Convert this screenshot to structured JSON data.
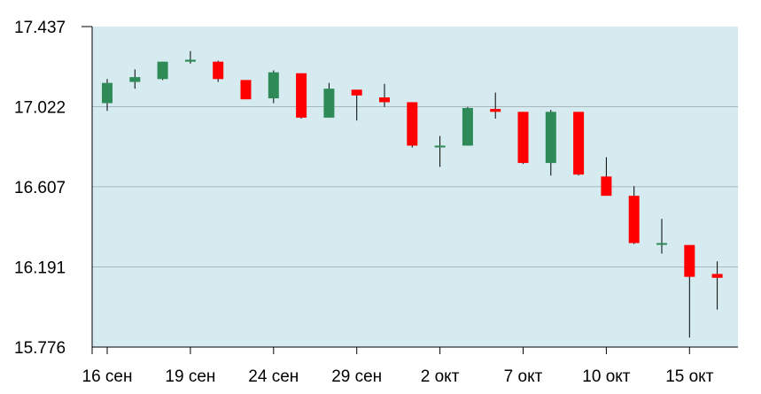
{
  "chart_data": {
    "type": "candlestick",
    "title": "",
    "xlabel": "",
    "ylabel": "",
    "ylim": [
      15.776,
      17.437
    ],
    "y_ticks": [
      "17.437",
      "17.022",
      "16.607",
      "16.191",
      "15.776"
    ],
    "x_ticks": [
      {
        "label": "16 сен",
        "index": 0
      },
      {
        "label": "19 сен",
        "index": 3
      },
      {
        "label": "24 сен",
        "index": 6
      },
      {
        "label": "29 сен",
        "index": 9
      },
      {
        "label": "2 окт",
        "index": 12
      },
      {
        "label": "7 окт",
        "index": 15
      },
      {
        "label": "10 окт",
        "index": 18
      },
      {
        "label": "15 окт",
        "index": 21
      }
    ],
    "grid": true,
    "colors": {
      "background": "#d6ebf0",
      "up": "#2e8b57",
      "down": "#ff0000",
      "wick": "#000000",
      "grid": "#a9b7bd"
    },
    "candles": [
      {
        "open": 17.04,
        "high": 17.165,
        "low": 17.0,
        "close": 17.145
      },
      {
        "open": 17.15,
        "high": 17.215,
        "low": 17.115,
        "close": 17.175
      },
      {
        "open": 17.165,
        "high": 17.255,
        "low": 17.16,
        "close": 17.255
      },
      {
        "open": 17.255,
        "high": 17.31,
        "low": 17.245,
        "close": 17.265
      },
      {
        "open": 17.255,
        "high": 17.26,
        "low": 17.15,
        "close": 17.165
      },
      {
        "open": 17.16,
        "high": 17.16,
        "low": 17.06,
        "close": 17.06
      },
      {
        "open": 17.065,
        "high": 17.21,
        "low": 17.04,
        "close": 17.2
      },
      {
        "open": 17.195,
        "high": 17.195,
        "low": 16.96,
        "close": 16.965
      },
      {
        "open": 16.965,
        "high": 17.145,
        "low": 16.965,
        "close": 17.115
      },
      {
        "open": 17.11,
        "high": 17.11,
        "low": 16.95,
        "close": 17.08
      },
      {
        "open": 17.07,
        "high": 17.14,
        "low": 17.02,
        "close": 17.045
      },
      {
        "open": 17.045,
        "high": 17.045,
        "low": 16.81,
        "close": 16.82
      },
      {
        "open": 16.82,
        "high": 16.87,
        "low": 16.71,
        "close": 16.82
      },
      {
        "open": 16.82,
        "high": 17.02,
        "low": 16.82,
        "close": 17.015
      },
      {
        "open": 17.01,
        "high": 17.095,
        "low": 16.96,
        "close": 16.995
      },
      {
        "open": 16.995,
        "high": 16.995,
        "low": 16.725,
        "close": 16.73
      },
      {
        "open": 16.73,
        "high": 17.005,
        "low": 16.665,
        "close": 16.995
      },
      {
        "open": 16.995,
        "high": 16.995,
        "low": 16.665,
        "close": 16.67
      },
      {
        "open": 16.66,
        "high": 16.76,
        "low": 16.56,
        "close": 16.56
      },
      {
        "open": 16.56,
        "high": 16.61,
        "low": 16.31,
        "close": 16.315
      },
      {
        "open": 16.315,
        "high": 16.44,
        "low": 16.26,
        "close": 16.315
      },
      {
        "open": 16.305,
        "high": 16.305,
        "low": 15.825,
        "close": 16.14
      },
      {
        "open": 16.155,
        "high": 16.22,
        "low": 15.97,
        "close": 16.135
      }
    ]
  }
}
